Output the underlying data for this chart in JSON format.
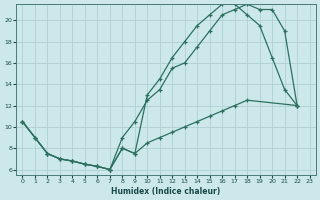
{
  "xlabel": "Humidex (Indice chaleur)",
  "bg_color": "#cce8ea",
  "grid_color": "#b0d0d4",
  "line_color": "#2d7060",
  "xlim": [
    -0.5,
    23.5
  ],
  "ylim": [
    5.5,
    21.5
  ],
  "xticks": [
    0,
    1,
    2,
    3,
    4,
    5,
    6,
    7,
    8,
    9,
    10,
    11,
    12,
    13,
    14,
    15,
    16,
    17,
    18,
    19,
    20,
    21,
    22,
    23
  ],
  "yticks": [
    6,
    8,
    10,
    12,
    14,
    16,
    18,
    20
  ],
  "curve1_x": [
    0,
    1,
    2,
    3,
    4,
    5,
    6,
    7,
    8,
    9,
    10,
    11,
    12,
    13,
    14,
    15,
    16,
    17,
    18,
    19,
    20,
    21,
    22
  ],
  "curve1_y": [
    10.5,
    9.0,
    7.5,
    7.0,
    6.8,
    6.5,
    6.3,
    6.0,
    9.0,
    10.5,
    12.5,
    13.5,
    15.5,
    16.0,
    17.5,
    19.0,
    20.5,
    21.0,
    21.5,
    21.0,
    21.0,
    19.0,
    12.0
  ],
  "curve2_x": [
    0,
    1,
    2,
    3,
    4,
    5,
    6,
    7,
    8,
    9,
    10,
    11,
    12,
    13,
    14,
    15,
    16,
    17,
    18,
    19,
    20,
    21,
    22
  ],
  "curve2_y": [
    10.5,
    9.0,
    7.5,
    7.0,
    6.8,
    6.5,
    6.3,
    6.0,
    8.0,
    7.5,
    13.0,
    14.5,
    16.5,
    18.0,
    19.5,
    20.5,
    21.5,
    21.5,
    20.5,
    19.5,
    16.5,
    13.5,
    12.0
  ],
  "curve3_x": [
    0,
    1,
    2,
    3,
    4,
    5,
    6,
    7,
    8,
    9,
    10,
    11,
    12,
    13,
    14,
    15,
    16,
    17,
    18,
    22
  ],
  "curve3_y": [
    10.5,
    9.0,
    7.5,
    7.0,
    6.8,
    6.5,
    6.3,
    6.0,
    8.0,
    7.5,
    8.5,
    9.0,
    9.5,
    10.0,
    10.5,
    11.0,
    11.5,
    12.0,
    12.5,
    12.0
  ]
}
